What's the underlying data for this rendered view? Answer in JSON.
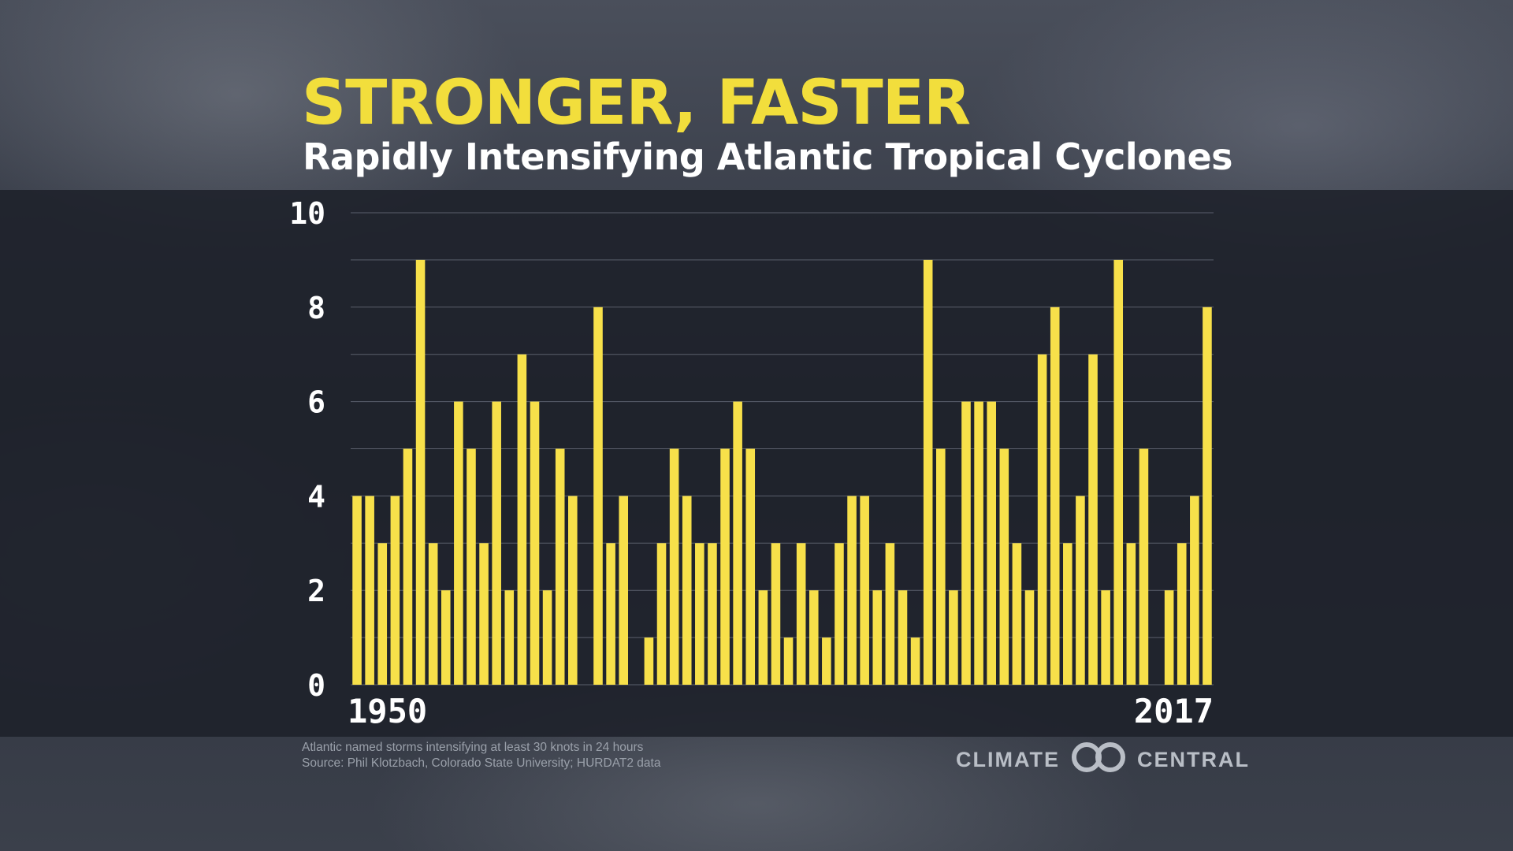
{
  "title": "STRONGER, FASTER",
  "subtitle": "Rapidly Intensifying Atlantic Tropical Cyclones",
  "footnote": {
    "line1": "Atlantic named storms intensifying at least 30 knots in 24 hours",
    "line2": "Source: Phil Klotzbach, Colorado State University; HURDAT2 data"
  },
  "logo": {
    "left_word": "CLIMATE",
    "right_word": "CENTRAL",
    "icon": "interlocking-rings-icon"
  },
  "colors": {
    "bar": "#f7e04a",
    "title": "#f2de3c"
  },
  "chart_data": {
    "type": "bar",
    "x": [
      1950,
      1951,
      1952,
      1953,
      1954,
      1955,
      1956,
      1957,
      1958,
      1959,
      1960,
      1961,
      1962,
      1963,
      1964,
      1965,
      1966,
      1967,
      1968,
      1969,
      1970,
      1971,
      1972,
      1973,
      1974,
      1975,
      1976,
      1977,
      1978,
      1979,
      1980,
      1981,
      1982,
      1983,
      1984,
      1985,
      1986,
      1987,
      1988,
      1989,
      1990,
      1991,
      1992,
      1993,
      1994,
      1995,
      1996,
      1997,
      1998,
      1999,
      2000,
      2001,
      2002,
      2003,
      2004,
      2005,
      2006,
      2007,
      2008,
      2009,
      2010,
      2011,
      2012,
      2013,
      2014,
      2015,
      2016,
      2017
    ],
    "values": [
      4,
      4,
      3,
      4,
      5,
      9,
      3,
      2,
      6,
      5,
      3,
      6,
      2,
      7,
      6,
      2,
      5,
      4,
      0,
      8,
      3,
      4,
      0,
      1,
      3,
      5,
      4,
      3,
      3,
      5,
      6,
      5,
      2,
      3,
      1,
      3,
      2,
      1,
      3,
      4,
      4,
      2,
      3,
      2,
      1,
      9,
      5,
      2,
      6,
      6,
      6,
      5,
      3,
      2,
      7,
      8,
      3,
      4,
      7,
      2,
      9,
      3,
      5,
      0,
      2,
      3,
      4,
      8
    ],
    "xtick_labels": [
      "1950",
      "2017"
    ],
    "yticks": [
      0,
      2,
      4,
      6,
      8,
      10
    ],
    "ylim": [
      0,
      10
    ],
    "grid": true
  }
}
